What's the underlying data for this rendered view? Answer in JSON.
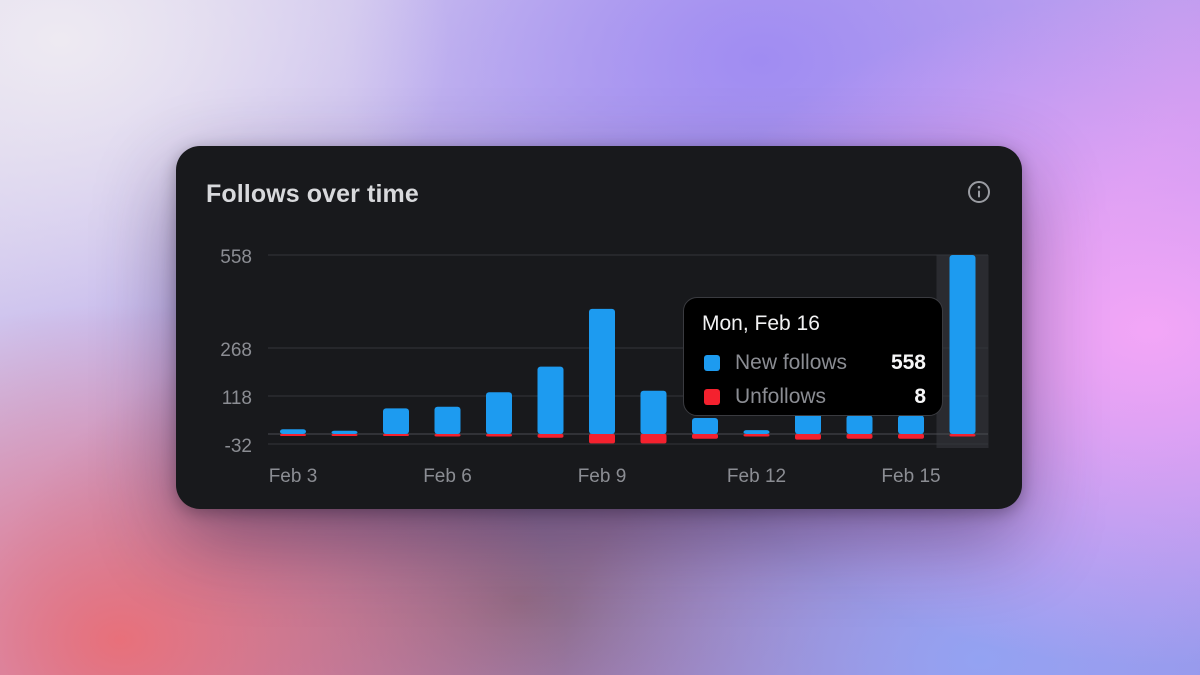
{
  "card": {
    "title": "Follows over time",
    "info_icon": "info-circle-icon"
  },
  "colors": {
    "new_follows": "#1d9bf0",
    "unfollows": "#f4212e",
    "card_bg": "#18191c",
    "grid": "#33353a",
    "axis_text": "#8b8d93"
  },
  "tooltip": {
    "date": "Mon, Feb 16",
    "rows": [
      {
        "label": "New follows",
        "value": "558",
        "color": "#1d9bf0"
      },
      {
        "label": "Unfollows",
        "value": "8",
        "color": "#f4212e"
      }
    ]
  },
  "chart_data": {
    "type": "bar",
    "title": "Follows over time",
    "categories": [
      "Feb 3",
      "Feb 4",
      "Feb 5",
      "Feb 6",
      "Feb 7",
      "Feb 8",
      "Feb 9",
      "Feb 10",
      "Feb 11",
      "Feb 12",
      "Feb 13",
      "Feb 14",
      "Feb 15",
      "Feb 16"
    ],
    "x_tick_labels": [
      "Feb 3",
      "Feb 6",
      "Feb 9",
      "Feb 12",
      "Feb 15"
    ],
    "y_ticks": [
      -32,
      118,
      268,
      558
    ],
    "ylim": [
      -32,
      558
    ],
    "grid": true,
    "stacked": true,
    "highlighted_category": "Feb 16",
    "series": [
      {
        "name": "New follows",
        "color": "#1d9bf0",
        "values": [
          15,
          10,
          80,
          85,
          130,
          210,
          390,
          135,
          50,
          12,
          70,
          58,
          58,
          558
        ]
      },
      {
        "name": "Unfollows",
        "color": "#f4212e",
        "values": [
          -5,
          -5,
          -3,
          -8,
          -8,
          -12,
          -30,
          -30,
          -15,
          -8,
          -18,
          -15,
          -15,
          -8
        ]
      }
    ]
  }
}
